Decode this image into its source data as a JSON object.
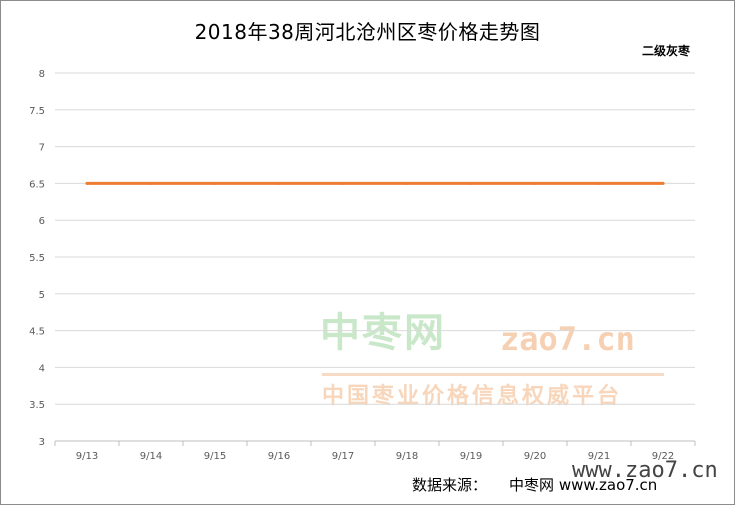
{
  "chart_data": {
    "type": "line",
    "title": "2018年38周河北沧州区枣价格走势图",
    "subtitle": "二级灰枣",
    "categories": [
      "9/13",
      "9/14",
      "9/15",
      "9/16",
      "9/17",
      "9/18",
      "9/19",
      "9/20",
      "9/21",
      "9/22"
    ],
    "series": [
      {
        "values": [
          6.5,
          6.5,
          6.5,
          6.5,
          6.5,
          6.5,
          6.5,
          6.5,
          6.5,
          6.5
        ],
        "color": "#ed7d31"
      }
    ],
    "xlabel": "",
    "ylabel": "",
    "ylim": [
      3,
      8
    ],
    "yticks": [
      "3",
      "3.5",
      "4",
      "4.5",
      "5",
      "5.5",
      "6",
      "6.5",
      "7",
      "7.5",
      "8"
    ],
    "grid": true,
    "legend": "none"
  },
  "watermark": {
    "brand": "中枣网",
    "site": "zao7.cn",
    "tagline": "中国枣业价格信息权威平台",
    "site_bottom": "www.zao7.cn"
  },
  "source": {
    "label": "数据来源：",
    "name": "中枣网",
    "url": "www.zao7.cn"
  },
  "colors": {
    "gridline": "#d9d9d9",
    "axis": "#bfbfbf",
    "line": "#ed7d31"
  }
}
